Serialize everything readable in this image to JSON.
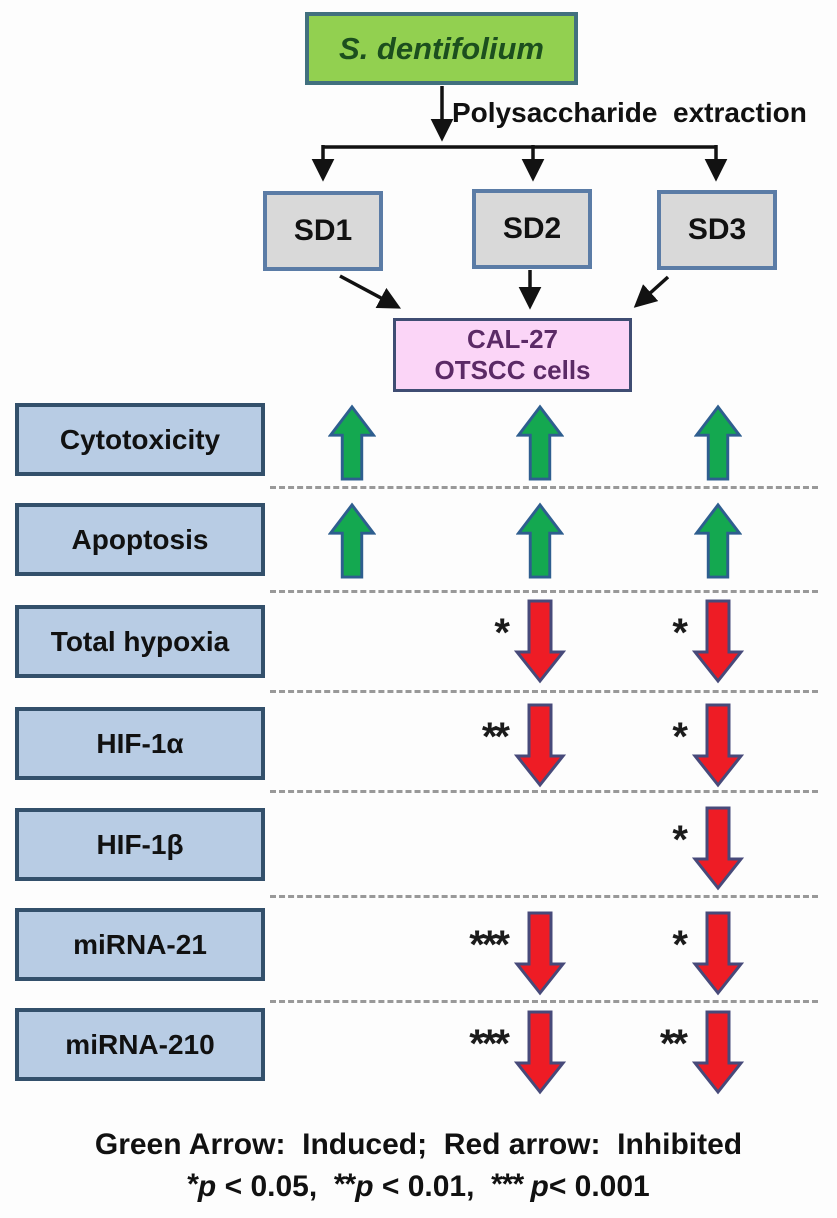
{
  "organism": {
    "label": "S. dentifolium"
  },
  "extraction_label": "Polysaccharide  extraction",
  "fractions": [
    "SD1",
    "SD2",
    "SD3"
  ],
  "target_cells": {
    "line1": "CAL-27",
    "line2": "OTSCC cells"
  },
  "rows": [
    {
      "label": "Cytotoxicity",
      "cells": [
        {
          "arrow": "up",
          "stars": ""
        },
        {
          "arrow": "up",
          "stars": ""
        },
        {
          "arrow": "up",
          "stars": ""
        }
      ]
    },
    {
      "label": "Apoptosis",
      "cells": [
        {
          "arrow": "up",
          "stars": ""
        },
        {
          "arrow": "up",
          "stars": ""
        },
        {
          "arrow": "up",
          "stars": ""
        }
      ]
    },
    {
      "label": "Total hypoxia",
      "cells": [
        {
          "arrow": "none",
          "stars": ""
        },
        {
          "arrow": "down",
          "stars": "*"
        },
        {
          "arrow": "down",
          "stars": "*"
        }
      ]
    },
    {
      "label": "HIF-1α",
      "cells": [
        {
          "arrow": "none",
          "stars": ""
        },
        {
          "arrow": "down",
          "stars": "**"
        },
        {
          "arrow": "down",
          "stars": "*"
        }
      ]
    },
    {
      "label": "HIF-1β",
      "cells": [
        {
          "arrow": "none",
          "stars": ""
        },
        {
          "arrow": "none",
          "stars": ""
        },
        {
          "arrow": "down",
          "stars": "*"
        }
      ]
    },
    {
      "label": "miRNA-21",
      "cells": [
        {
          "arrow": "none",
          "stars": ""
        },
        {
          "arrow": "down",
          "stars": "***"
        },
        {
          "arrow": "down",
          "stars": "*"
        }
      ]
    },
    {
      "label": "miRNA-210",
      "cells": [
        {
          "arrow": "none",
          "stars": ""
        },
        {
          "arrow": "down",
          "stars": "***"
        },
        {
          "arrow": "down",
          "stars": "**"
        }
      ]
    }
  ],
  "legend": {
    "line1": "Green Arrow:  Induced;  Red arrow:  Inhibited",
    "p_symbol": "p",
    "sig_levels": [
      {
        "stars": "*",
        "suffix": " < 0.05,  "
      },
      {
        "stars": "**",
        "suffix": " < 0.01,  "
      },
      {
        "stars": "*** ",
        "suffix": "< 0.001"
      }
    ]
  },
  "colors": {
    "organism_box_fill": "#92d050",
    "organism_box_border": "#41707e",
    "organism_text": "#1c4f1e",
    "fraction_box_fill": "#d9d9d9",
    "fraction_box_border": "#5b7ca6",
    "cell_box_fill": "#fbd5f7",
    "cell_box_border": "#3f4d73",
    "cell_box_text": "#5b2a66",
    "row_box_fill": "#b8cce4",
    "row_box_border": "#33506b",
    "green_arrow_fill": "#14a850",
    "green_arrow_outline": "#2e5e8f",
    "red_arrow_fill": "#ee1c25",
    "red_arrow_outline": "#474a7a",
    "dashed_line": "#999999",
    "connector_line": "#121212"
  }
}
